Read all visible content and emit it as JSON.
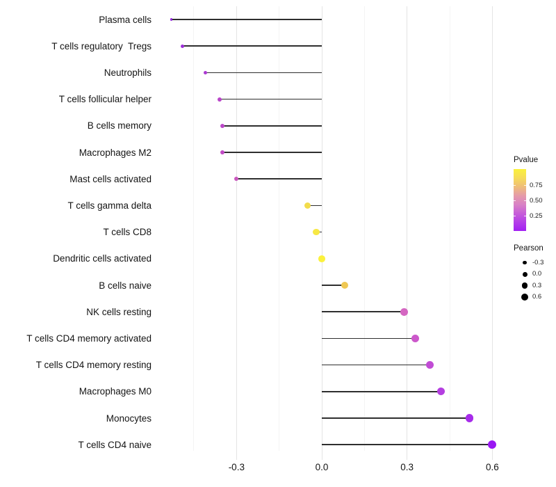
{
  "figure": {
    "background": "#ffffff"
  },
  "legend": {
    "pvalue": {
      "title": "Pvalue",
      "tick_labels": [
        "0.75",
        "0.50",
        "0.25"
      ],
      "tick_values": [
        0.75,
        0.5,
        0.25
      ],
      "bar_value_range": [
        1.02,
        0.01
      ],
      "gradient_top_to_bottom": [
        "#FAF13C",
        "#F6DC58",
        "#EFBD79",
        "#E59BA9",
        "#D982C5",
        "#C75ED8",
        "#B43EE8",
        "#A21FF2"
      ]
    },
    "pearson": {
      "title": "Pearson",
      "dot_color": "#000000",
      "entries": [
        {
          "label": "-0.3",
          "diameter": 5.3
        },
        {
          "label": "0.0",
          "diameter": 7.0
        },
        {
          "label": "0.3",
          "diameter": 8.7
        },
        {
          "label": "0.6",
          "diameter": 10.0
        }
      ]
    }
  },
  "chart_data": {
    "type": "scatter",
    "variant": "lollipop",
    "orientation": "horizontal",
    "title": "",
    "xlabel": "",
    "ylabel": "",
    "xlim": [
      -0.59,
      0.66
    ],
    "baseline": 0,
    "grid": "vertical-only",
    "legend_position": "right",
    "color_encoding": "Pvalue (yellow = high p, purple = low p)",
    "size_encoding": "Pearson correlation",
    "x_ticks": {
      "values": [
        -0.3,
        0.0,
        0.3,
        0.6
      ],
      "labels": [
        "-0.3",
        "0.0",
        "0.3",
        "0.6"
      ]
    },
    "x_minor_ticks": [
      -0.45,
      -0.15,
      0.15,
      0.45
    ],
    "categories": [
      "Plasma cells",
      "T cells regulatory  Tregs",
      "Neutrophils",
      "T cells follicular helper",
      "B cells memory",
      "Macrophages M2",
      "Mast cells activated",
      "T cells gamma delta",
      "T cells CD8",
      "Dendritic cells activated",
      "B cells naive",
      "NK cells resting",
      "T cells CD4 memory activated",
      "T cells CD4 memory resting",
      "Macrophages M0",
      "Monocytes",
      "T cells CD4 naive"
    ],
    "series": [
      {
        "name": "Pearson",
        "values": [
          -0.53,
          -0.49,
          -0.41,
          -0.36,
          -0.35,
          -0.35,
          -0.3,
          -0.05,
          -0.02,
          0.0,
          0.08,
          0.29,
          0.33,
          0.38,
          0.42,
          0.52,
          0.6
        ]
      }
    ],
    "point_colors": [
      "#9326DB",
      "#9D2ED8",
      "#AB39D1",
      "#B945C9",
      "#BB47C8",
      "#C14BC5",
      "#C957BD",
      "#F2DC4B",
      "#F7E844",
      "#FBF13C",
      "#EFC853",
      "#D466C1",
      "#CC58CB",
      "#C14CD5",
      "#B43EE0",
      "#A72CEA",
      "#9917F2"
    ],
    "point_diameters": [
      3.5,
      5.0,
      5.7,
      6.0,
      6.0,
      6.0,
      6.3,
      9.3,
      9.5,
      9.7,
      10.0,
      10.7,
      11.0,
      11.3,
      11.3,
      11.7,
      12.3
    ],
    "stem_color": "#2e2e2e",
    "grid_major_color": "#e4e4e4",
    "grid_minor_color": "#f4f4f4",
    "text_color": "#141414"
  }
}
